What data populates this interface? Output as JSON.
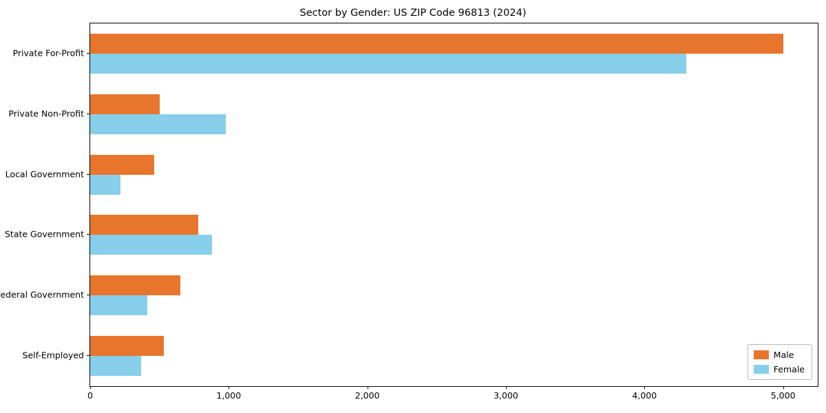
{
  "title": "Sector by Gender: US ZIP Code 96813 (2024)",
  "chart_data": {
    "type": "bar",
    "orientation": "horizontal",
    "title": "Sector by Gender: US ZIP Code 96813 (2024)",
    "categories": [
      "Private For-Profit",
      "Private Non-Profit",
      "Local Government",
      "State Government",
      "Federal Government",
      "Self-Employed"
    ],
    "series": [
      {
        "name": "Male",
        "color": "#e8752c",
        "values": [
          5000,
          500,
          460,
          780,
          650,
          530
        ]
      },
      {
        "name": "Female",
        "color": "#87ceeb",
        "values": [
          4300,
          980,
          220,
          880,
          410,
          370
        ]
      }
    ],
    "xlim": [
      0,
      5250
    ],
    "xticks": [
      0,
      1000,
      2000,
      3000,
      4000,
      5000
    ],
    "xtick_labels": [
      "0",
      "1,000",
      "2,000",
      "3,000",
      "4,000",
      "5,000"
    ],
    "xlabel": "",
    "ylabel": "",
    "grid": false,
    "legend_position": "lower right",
    "plot_background": "#ffffff"
  }
}
